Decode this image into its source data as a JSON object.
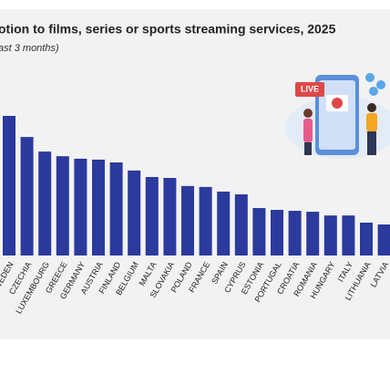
{
  "chart_data": {
    "type": "bar",
    "title": "otion to films, series or sports streaming services, 2025",
    "subtitle": "ast 3 months)",
    "categories": [
      "SWEDEN",
      "CZECHIA",
      "LUXEMBOURG",
      "GREECE",
      "GERMANY",
      "AUSTRIA",
      "FINLAND",
      "BELGIUM",
      "MALTA",
      "SLOVAKIA",
      "POLAND",
      "FRANCE",
      "SPAIN",
      "CYPRUS",
      "ESTONIA",
      "PORTUGAL",
      "CROATIA",
      "ROMANIA",
      "HUNGARY",
      "ITALY",
      "LITHUANIA",
      "LATVIA"
    ],
    "values": [
      45,
      38.2,
      33.5,
      32,
      31.2,
      30.9,
      30,
      27.4,
      25.3,
      25,
      22.4,
      22.1,
      20.6,
      19.7,
      15.3,
      14.7,
      14.4,
      14.1,
      12.9,
      12.9,
      10.6,
      10
    ],
    "color": "#2b3a9c",
    "ylim": [
      0,
      50
    ]
  },
  "illustration": {
    "live_text": "LIVE"
  }
}
